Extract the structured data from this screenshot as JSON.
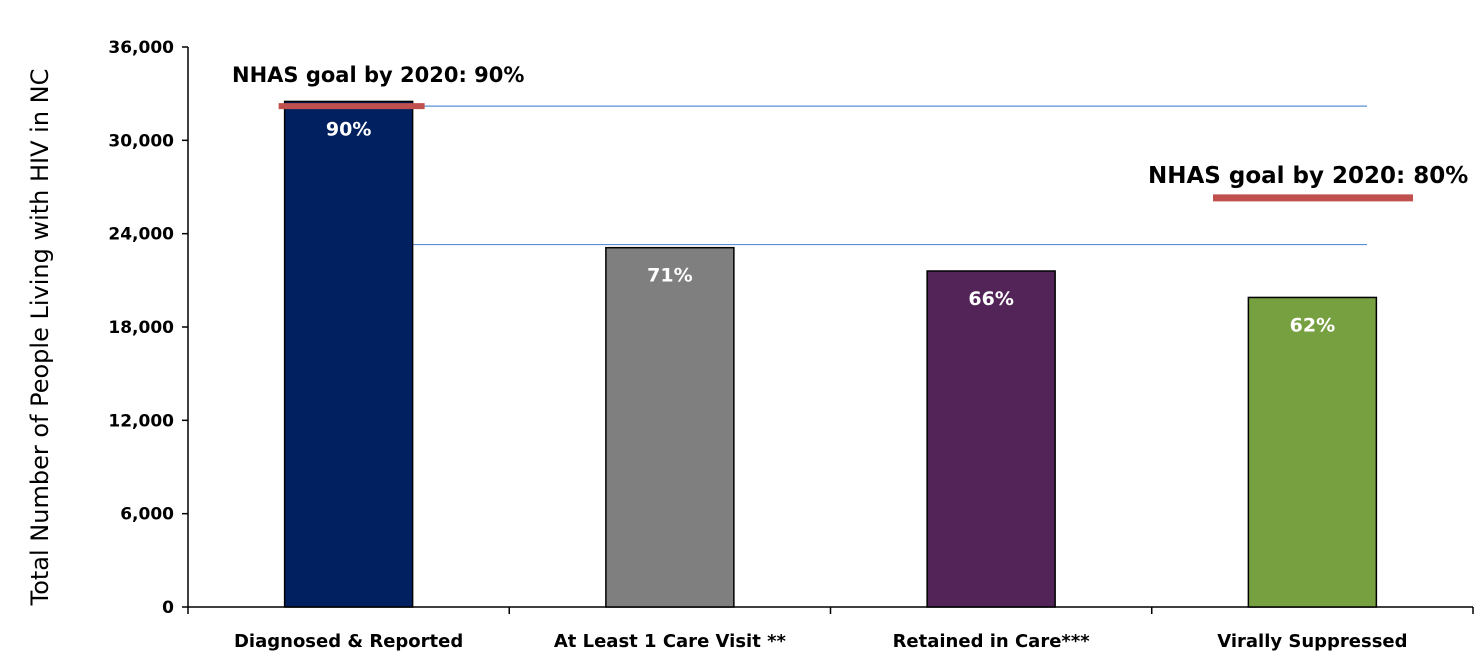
{
  "chart_data": {
    "type": "bar",
    "ylabel": "Total Number of People Living with HIV in NC",
    "xlabel": "",
    "ylim": [
      0,
      36000
    ],
    "yticks": [
      0,
      6000,
      12000,
      18000,
      24000,
      30000,
      36000
    ],
    "ytick_labels": [
      "0",
      "6,000",
      "12,000",
      "18,000",
      "24,000",
      "30,000",
      "36,000"
    ],
    "categories": [
      "Diagnosed & Reported",
      "At Least 1 Care Visit **",
      "Retained in Care***",
      "Virally Suppressed"
    ],
    "values": [
      32500,
      23100,
      21600,
      19900
    ],
    "data_labels": [
      "90%",
      "71%",
      "66%",
      "62%"
    ],
    "colors": [
      "#002060",
      "#7f7f7f",
      "#522458",
      "#77a040"
    ],
    "reference_lines": [
      {
        "value": 32200,
        "color": "#5b8fd9"
      },
      {
        "value": 23300,
        "color": "#5b8fd9"
      }
    ],
    "annotations": [
      {
        "text": "NHAS goal by 2020: 90%",
        "marker_value": 32200,
        "marker_color": "#c0504d"
      },
      {
        "text": "NHAS goal by 2020: 80%",
        "marker_value": 26300,
        "marker_color": "#c0504d"
      }
    ],
    "grid": false
  }
}
